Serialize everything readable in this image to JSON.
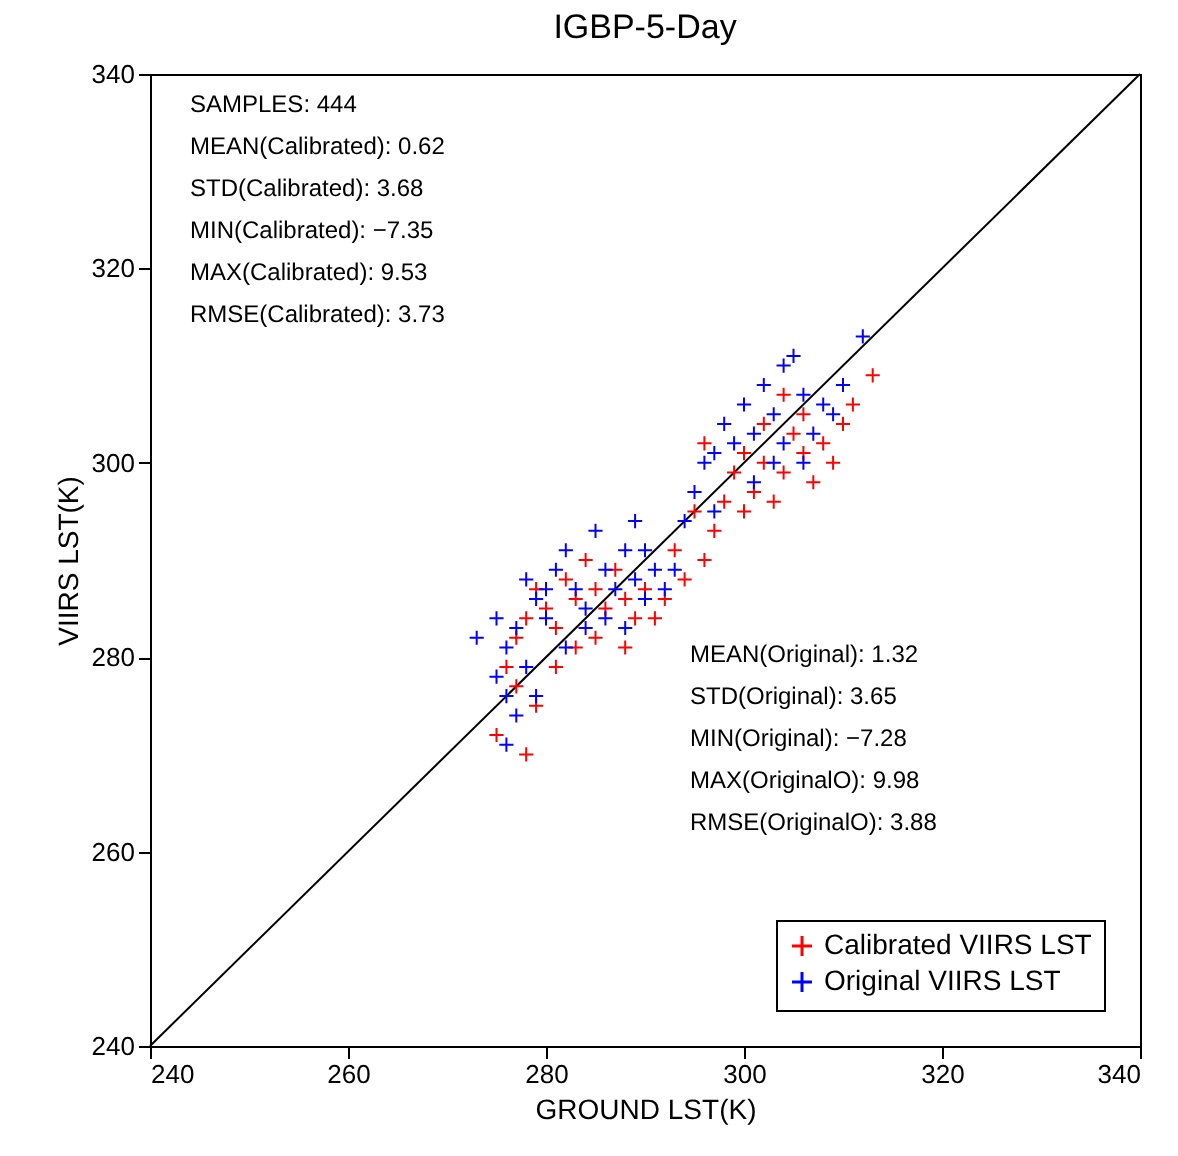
{
  "chart_data": {
    "type": "scatter",
    "title": "IGBP-5-Day",
    "xlabel": "GROUND LST(K)",
    "ylabel": "VIIRS LST(K)",
    "xlim": [
      240,
      340
    ],
    "ylim": [
      240,
      340
    ],
    "xticks": [
      240,
      260,
      280,
      300,
      320,
      340
    ],
    "yticks": [
      240,
      260,
      280,
      300,
      320,
      340
    ],
    "grid": false,
    "legend": "bottom right",
    "marker": "cross",
    "annotations": [
      "SAMPLES: 444",
      "MEAN(Calibrated): 0.62",
      "STD(Calibrated): 3.68",
      "MIN(Calibrated): −7.35",
      "MAX(Calibrated): 9.53",
      "RMSE(Calibrated): 3.73",
      "MEAN(Original): 1.32",
      "STD(Original): 3.65",
      "MIN(Original): −7.28",
      "MAX(OriginalO): 9.98",
      "RMSE(OriginalO): 3.88"
    ],
    "series": [
      {
        "type": "line",
        "color": "#000000",
        "line_style": "solid",
        "marker": "none",
        "x": [
          240,
          340
        ],
        "values": [
          240,
          340
        ]
      },
      {
        "name": "Calibrated VIIRS LST",
        "color": "#ff0000",
        "x": [
          275,
          276,
          277,
          277,
          278,
          279,
          280,
          281,
          282,
          283,
          284,
          285,
          286,
          287,
          288,
          289,
          290,
          291,
          292,
          285,
          283,
          281,
          279,
          293,
          294,
          295,
          296,
          297,
          298,
          299,
          300,
          301,
          302,
          303,
          304,
          305,
          306,
          307,
          308,
          309,
          310,
          311,
          313,
          302,
          300,
          296,
          278,
          288,
          304,
          306
        ],
        "values": [
          272,
          279,
          277,
          282,
          284,
          287,
          285,
          283,
          288,
          286,
          290,
          287,
          285,
          289,
          286,
          284,
          287,
          284,
          286,
          282,
          281,
          279,
          275,
          291,
          288,
          295,
          290,
          293,
          296,
          299,
          301,
          297,
          300,
          296,
          299,
          303,
          301,
          298,
          302,
          300,
          304,
          306,
          309,
          304,
          295,
          302,
          270,
          281,
          307,
          305
        ]
      },
      {
        "name": "Original VIIRS LST",
        "color": "#0000ff",
        "x": [
          273,
          275,
          276,
          277,
          275,
          276,
          277,
          276,
          278,
          279,
          278,
          280,
          281,
          282,
          283,
          284,
          285,
          286,
          287,
          288,
          289,
          290,
          291,
          292,
          284,
          282,
          286,
          288,
          290,
          293,
          294,
          295,
          296,
          297,
          298,
          299,
          300,
          301,
          302,
          303,
          304,
          305,
          306,
          307,
          308,
          309,
          310,
          312,
          303,
          301,
          297,
          280,
          279,
          289,
          304,
          306
        ],
        "values": [
          282,
          284,
          281,
          283,
          278,
          276,
          274,
          271,
          279,
          286,
          288,
          287,
          289,
          291,
          287,
          285,
          293,
          289,
          287,
          291,
          288,
          286,
          289,
          287,
          283,
          281,
          284,
          283,
          291,
          289,
          294,
          297,
          300,
          301,
          304,
          302,
          306,
          303,
          308,
          305,
          310,
          311,
          307,
          303,
          306,
          305,
          308,
          313,
          300,
          298,
          295,
          284,
          276,
          294,
          302,
          300
        ]
      }
    ]
  }
}
